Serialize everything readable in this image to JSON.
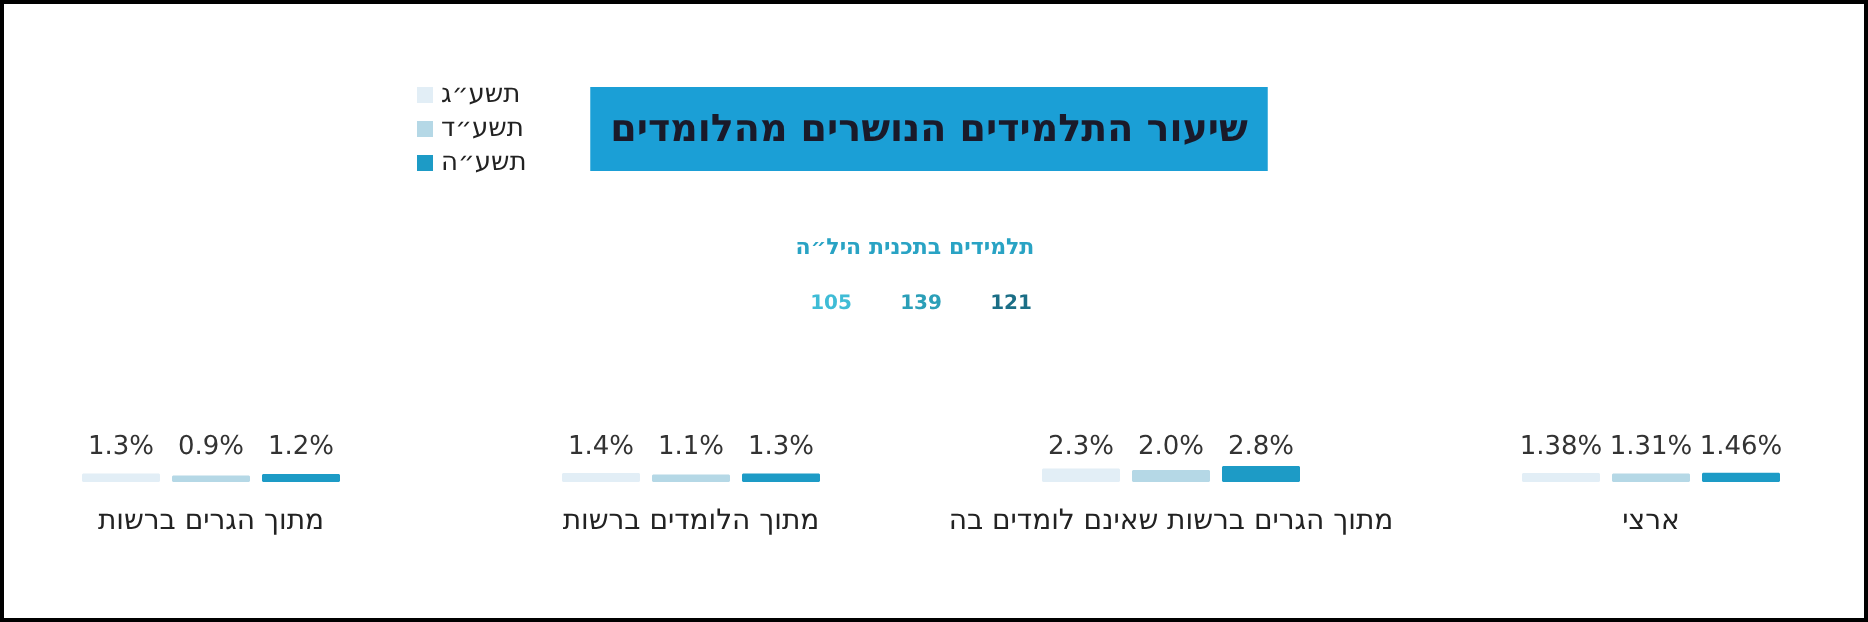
{
  "chart_data": {
    "type": "bar",
    "title": "שיעור התלמידים הנושרים מהלומדים",
    "categories": [
      "מתוך הגרים ברשות",
      "מתוך הלומדים ברשות",
      "מתוך הגרים ברשות שאינם לומדים בה",
      "ארצי"
    ],
    "series": [
      {
        "name": "תשע״ג",
        "color": "#e2eef6",
        "values": [
          1.3,
          1.4,
          2.3,
          1.38
        ],
        "value_labels": [
          "1.3%",
          "1.4%",
          "2.3%",
          "1.38%"
        ]
      },
      {
        "name": "תשע״ד",
        "color": "#b5d8e6",
        "values": [
          0.9,
          1.1,
          2.0,
          1.31
        ],
        "value_labels": [
          "0.9%",
          "1.1%",
          "2.0%",
          "1.31%"
        ]
      },
      {
        "name": "תשע״ה",
        "color": "#1d9bc6",
        "values": [
          1.2,
          1.3,
          2.8,
          1.46
        ],
        "value_labels": [
          "1.2%",
          "1.3%",
          "2.8%",
          "1.46%"
        ]
      }
    ],
    "annotations": [
      "תלמידים בתכנית היל״ה",
      "105",
      "139",
      "121"
    ],
    "legend": "top left"
  }
}
